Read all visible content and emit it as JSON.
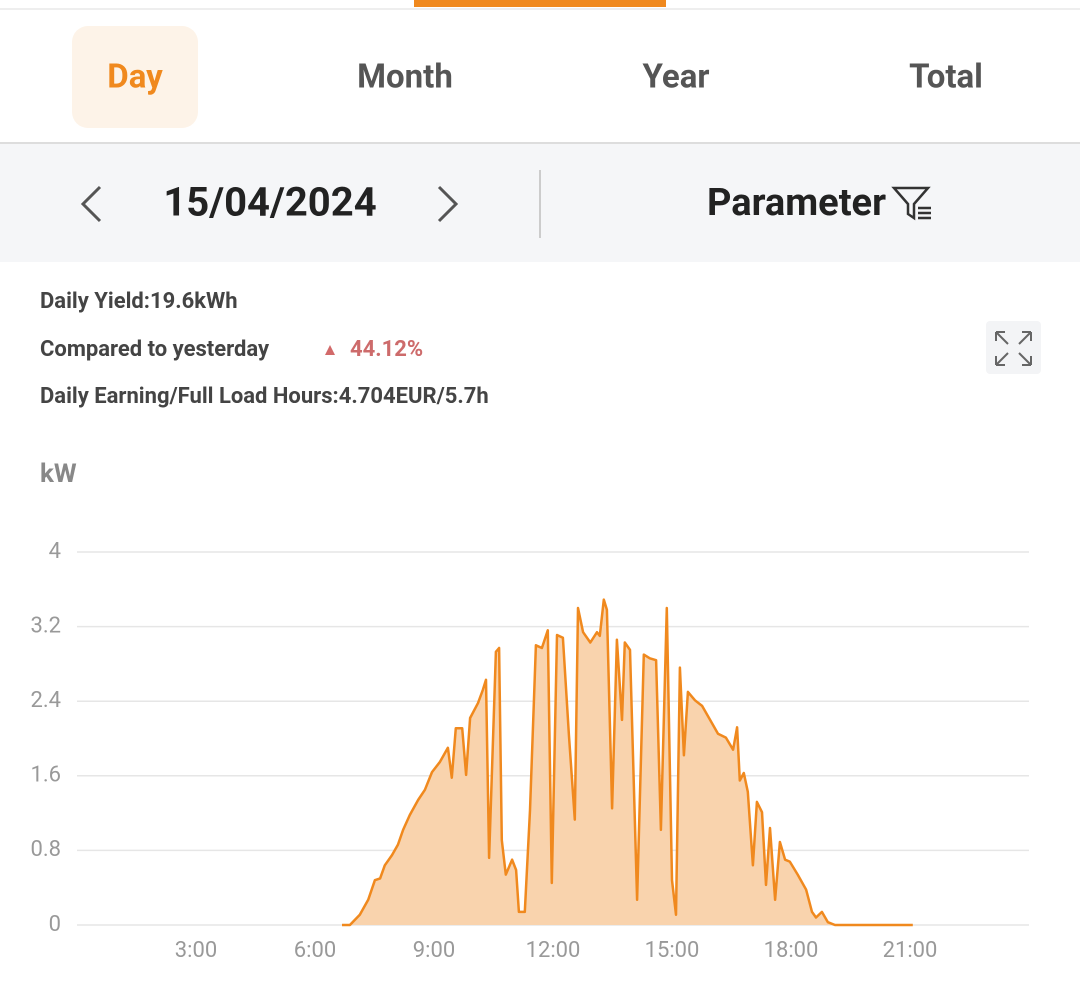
{
  "tabs": {
    "items": [
      "Day",
      "Month",
      "Year",
      "Total"
    ],
    "active": 0
  },
  "date_bar": {
    "date": "15/04/2024",
    "parameter": "Parameter"
  },
  "stats": {
    "daily_yield": "Daily Yield:19.6kWh",
    "compared_label": "Compared to yesterday",
    "compared_value": "44.12%",
    "earning": "Daily Earning/Full Load Hours:4.704EUR/5.7h"
  },
  "chart_data": {
    "type": "area",
    "y_label": "kW",
    "color": "#f0891e",
    "fill_color": "#f9d3ad",
    "grid": true,
    "xlim": [
      0,
      24
    ],
    "xticks": [
      {
        "value": 3,
        "label": "3:00"
      },
      {
        "value": 6,
        "label": "6:00"
      },
      {
        "value": 9,
        "label": "9:00"
      },
      {
        "value": 12,
        "label": "12:00"
      },
      {
        "value": 15,
        "label": "15:00"
      },
      {
        "value": 18,
        "label": "18:00"
      },
      {
        "value": 21,
        "label": "21:00"
      }
    ],
    "ylim": [
      0,
      4
    ],
    "yticks": [
      0,
      0.8,
      1.6,
      2.4,
      3.2,
      4
    ],
    "x": [
      6.68,
      6.88,
      7.13,
      7.34,
      7.51,
      7.64,
      7.76,
      7.94,
      8.09,
      8.22,
      8.39,
      8.6,
      8.77,
      8.95,
      9.15,
      9.35,
      9.45,
      9.55,
      9.71,
      9.81,
      9.91,
      10.11,
      10.23,
      10.31,
      10.39,
      10.56,
      10.64,
      10.71,
      10.81,
      10.97,
      11.07,
      11.14,
      11.29,
      11.42,
      11.57,
      11.72,
      11.87,
      11.97,
      12.1,
      12.25,
      12.4,
      12.55,
      12.63,
      12.76,
      12.94,
      13.11,
      13.18,
      13.28,
      13.36,
      13.49,
      13.61,
      13.74,
      13.81,
      13.94,
      14.12,
      14.29,
      14.44,
      14.6,
      14.72,
      14.87,
      15.0,
      15.1,
      15.2,
      15.3,
      15.4,
      15.58,
      15.76,
      15.96,
      16.16,
      16.36,
      16.54,
      16.64,
      16.71,
      16.81,
      16.91,
      17.04,
      17.14,
      17.27,
      17.37,
      17.47,
      17.6,
      17.72,
      17.85,
      17.97,
      18.17,
      18.38,
      18.53,
      18.63,
      18.78,
      18.93,
      19.11,
      21.07
    ],
    "values": [
      0,
      0,
      0.11,
      0.27,
      0.48,
      0.5,
      0.64,
      0.75,
      0.86,
      1.02,
      1.18,
      1.34,
      1.45,
      1.64,
      1.75,
      1.9,
      1.58,
      2.11,
      2.11,
      1.61,
      2.22,
      2.38,
      2.52,
      2.63,
      0.72,
      2.93,
      2.97,
      0.91,
      0.54,
      0.7,
      0.59,
      0.14,
      0.14,
      1.23,
      3.0,
      2.97,
      3.16,
      0.45,
      3.11,
      3.08,
      2.04,
      1.13,
      3.4,
      3.14,
      3.03,
      3.14,
      3.1,
      3.49,
      3.38,
      1.25,
      3.06,
      2.2,
      3.03,
      2.95,
      0.27,
      2.9,
      2.86,
      2.84,
      1.02,
      3.4,
      0.48,
      0.11,
      2.76,
      1.82,
      2.5,
      2.41,
      2.35,
      2.2,
      2.05,
      2.01,
      1.88,
      2.12,
      1.55,
      1.63,
      1.43,
      0.64,
      1.32,
      1.21,
      0.43,
      1.04,
      0.27,
      0.89,
      0.7,
      0.68,
      0.54,
      0.38,
      0.14,
      0.08,
      0.14,
      0.03,
      0,
      0
    ]
  }
}
